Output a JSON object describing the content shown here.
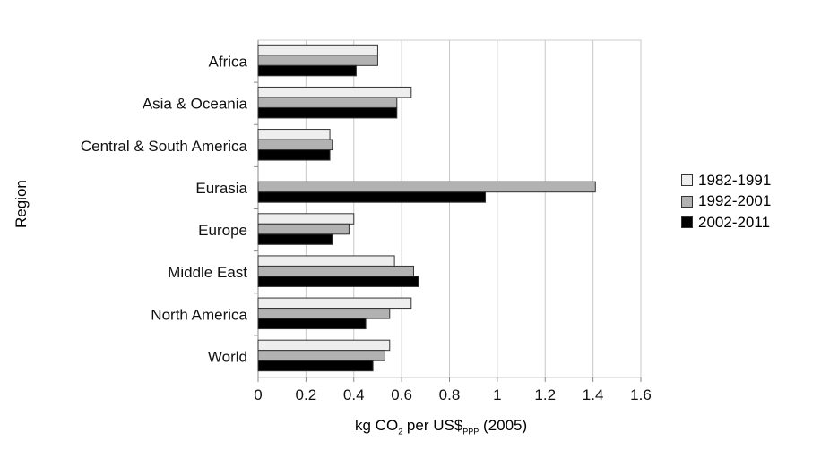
{
  "chart_data": {
    "type": "bar",
    "orientation": "horizontal",
    "title": "",
    "ylabel": "Region",
    "xlabel": {
      "main": "kg CO",
      "sub1": "2",
      "mid": " per US$",
      "sub2": "PPP",
      "tail": " (2005)"
    },
    "categories": [
      "Africa",
      "Asia & Oceania",
      "Central & South America",
      "Eurasia",
      "Europe",
      "Middle East",
      "North America",
      "World"
    ],
    "series": [
      {
        "name": "1982-1991",
        "color": "#eeeeee",
        "values": [
          0.5,
          0.64,
          0.3,
          null,
          0.4,
          0.57,
          0.64,
          0.55
        ]
      },
      {
        "name": "1992-2001",
        "color": "#b2b2b2",
        "values": [
          0.5,
          0.58,
          0.31,
          1.41,
          0.38,
          0.65,
          0.55,
          0.53
        ]
      },
      {
        "name": "2002-2011",
        "color": "#000000",
        "values": [
          0.41,
          0.58,
          0.3,
          0.95,
          0.31,
          0.67,
          0.45,
          0.48
        ]
      }
    ],
    "xlim": [
      0,
      1.6
    ],
    "xticks": [
      "0",
      "0.2",
      "0.4",
      "0.6",
      "0.8",
      "1",
      "1.2",
      "1.4",
      "1.6"
    ],
    "grid": "vertical",
    "legend_position": "right"
  }
}
